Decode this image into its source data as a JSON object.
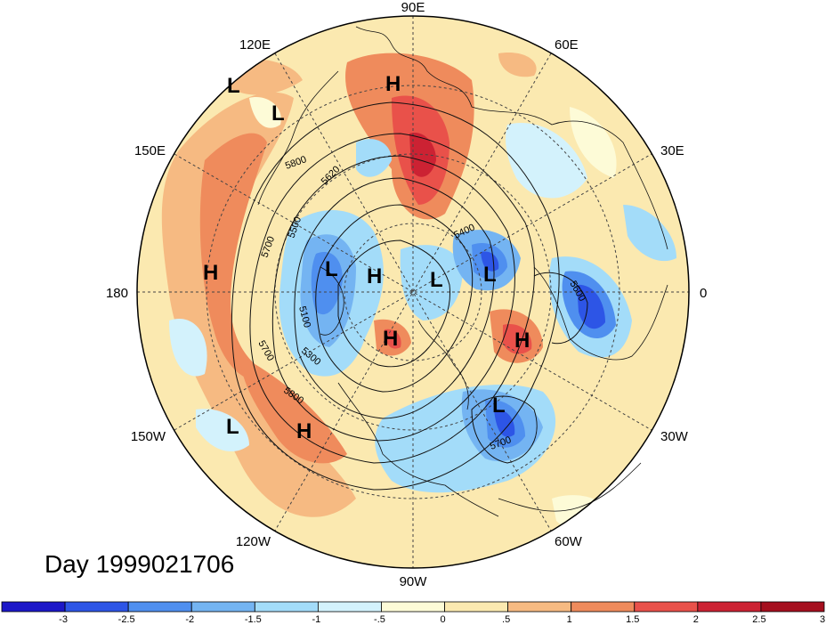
{
  "title": "Day 1999021706",
  "longitude_labels": [
    "90E",
    "60E",
    "30E",
    "0",
    "30W",
    "60W",
    "90W",
    "120W",
    "150W",
    "180",
    "150E",
    "120E"
  ],
  "contour_labels": [
    "5800",
    "5620",
    "5500",
    "5400",
    "5700",
    "5100",
    "5600",
    "5300",
    "5700",
    "5800",
    "5700"
  ],
  "pressure_centers": [
    "H",
    "L",
    "L",
    "H",
    "H",
    "L",
    "H",
    "L",
    "L",
    "H",
    "H",
    "L",
    "L",
    "H"
  ],
  "colorbar": {
    "ticks": [
      "-3",
      "-2.5",
      "-2",
      "-1.5",
      "-1",
      "-.5",
      "0",
      ".5",
      "1",
      "1.5",
      "2",
      "2.5",
      "3"
    ],
    "colors": [
      "#1c17c8",
      "#2d55e6",
      "#4f8fef",
      "#74b4f2",
      "#a3dcf9",
      "#d3f2fc",
      "#fdfbd7",
      "#fbe9b0",
      "#f6ba82",
      "#ef8b5c",
      "#e9514a",
      "#cc2233",
      "#a50f1e"
    ]
  }
}
